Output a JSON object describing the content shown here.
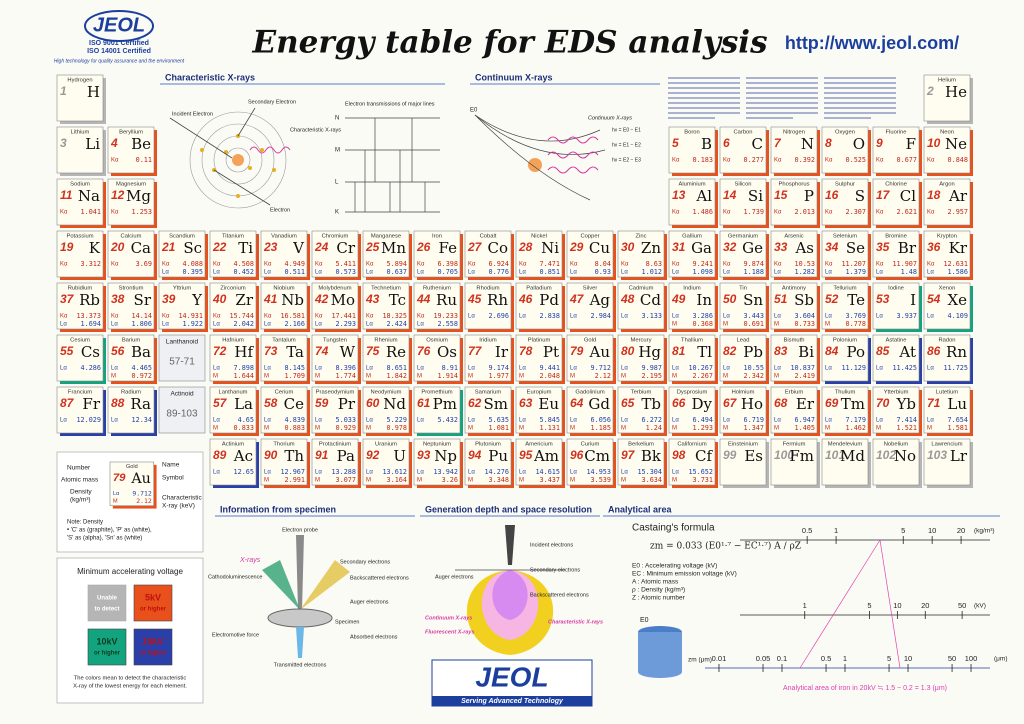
{
  "header": {
    "logo": "JEOL",
    "iso": [
      "ISO 9001 Certified",
      "ISO 14001 Certified"
    ],
    "tagline": "High technology for quality assurance and the environment",
    "title": "Energy table for EDS analysis",
    "url": "http://www.jeol.com/"
  },
  "line_labels": {
    "Ka": "Kα",
    "La": "Lα",
    "M": "M"
  },
  "elements": [
    {
      "z": 1,
      "symbol": "H",
      "name": "Hydrogen",
      "color": "#b5b5b5"
    },
    {
      "z": 2,
      "symbol": "He",
      "name": "Helium",
      "color": "#b5b5b5"
    },
    {
      "z": 3,
      "symbol": "Li",
      "name": "Lithium",
      "color": "#b5b5b5"
    },
    {
      "z": 4,
      "symbol": "Be",
      "name": "Beryllium",
      "color": "#e8501c",
      "Ka": 0.11
    },
    {
      "z": 5,
      "symbol": "B",
      "name": "Boron",
      "color": "#e8501c",
      "Ka": 0.183
    },
    {
      "z": 6,
      "symbol": "C",
      "name": "Carbon",
      "color": "#e8501c",
      "Ka": 0.277
    },
    {
      "z": 7,
      "symbol": "N",
      "name": "Nitrogen",
      "color": "#e8501c",
      "Ka": 0.392
    },
    {
      "z": 8,
      "symbol": "O",
      "name": "Oxygen",
      "color": "#e8501c",
      "Ka": 0.525
    },
    {
      "z": 9,
      "symbol": "F",
      "name": "Fluorine",
      "color": "#e8501c",
      "Ka": 0.677
    },
    {
      "z": 10,
      "symbol": "Ne",
      "name": "Neon",
      "color": "#e8501c",
      "Ka": 0.848
    },
    {
      "z": 11,
      "symbol": "Na",
      "name": "Sodium",
      "color": "#e8501c",
      "Ka": 1.041
    },
    {
      "z": 12,
      "symbol": "Mg",
      "name": "Magnesium",
      "color": "#e8501c",
      "Ka": 1.253
    },
    {
      "z": 13,
      "symbol": "Al",
      "name": "Aluminium",
      "color": "#e8501c",
      "Ka": 1.486
    },
    {
      "z": 14,
      "symbol": "Si",
      "name": "Silicon",
      "color": "#e8501c",
      "Ka": 1.739
    },
    {
      "z": 15,
      "symbol": "P",
      "name": "Phosphorus",
      "color": "#e8501c",
      "Ka": 2.013
    },
    {
      "z": 16,
      "symbol": "S",
      "name": "Sulphur",
      "color": "#e8501c",
      "Ka": 2.307
    },
    {
      "z": 17,
      "symbol": "Cl",
      "name": "Chlorine",
      "color": "#e8501c",
      "Ka": 2.621
    },
    {
      "z": 18,
      "symbol": "Ar",
      "name": "Argon",
      "color": "#e8501c",
      "Ka": 2.957
    },
    {
      "z": 19,
      "symbol": "K",
      "name": "Potassium",
      "color": "#e8501c",
      "Ka": 3.312
    },
    {
      "z": 20,
      "symbol": "Ca",
      "name": "Calcium",
      "color": "#e8501c",
      "Ka": 3.69
    },
    {
      "z": 21,
      "symbol": "Sc",
      "name": "Scandium",
      "color": "#e8501c",
      "Ka": 4.088,
      "La": 0.395
    },
    {
      "z": 22,
      "symbol": "Ti",
      "name": "Titanium",
      "color": "#e8501c",
      "Ka": 4.508,
      "La": 0.452
    },
    {
      "z": 23,
      "symbol": "V",
      "name": "Vanadium",
      "color": "#e8501c",
      "Ka": 4.949,
      "La": 0.511
    },
    {
      "z": 24,
      "symbol": "Cr",
      "name": "Chromium",
      "color": "#e8501c",
      "Ka": 5.411,
      "La": 0.573
    },
    {
      "z": 25,
      "symbol": "Mn",
      "name": "Manganese",
      "color": "#e8501c",
      "Ka": 5.894,
      "La": 0.637
    },
    {
      "z": 26,
      "symbol": "Fe",
      "name": "Iron",
      "color": "#e8501c",
      "Ka": 6.398,
      "La": 0.705
    },
    {
      "z": 27,
      "symbol": "Co",
      "name": "Cobalt",
      "color": "#e8501c",
      "Ka": 6.924,
      "La": 0.776
    },
    {
      "z": 28,
      "symbol": "Ni",
      "name": "Nickel",
      "color": "#e8501c",
      "Ka": 7.471,
      "La": 0.851
    },
    {
      "z": 29,
      "symbol": "Cu",
      "name": "Copper",
      "color": "#e8501c",
      "Ka": 8.04,
      "La": 0.93
    },
    {
      "z": 30,
      "symbol": "Zn",
      "name": "Zinc",
      "color": "#e8501c",
      "Ka": 8.63,
      "La": 1.012
    },
    {
      "z": 31,
      "symbol": "Ga",
      "name": "Gallium",
      "color": "#e8501c",
      "Ka": 9.241,
      "La": 1.098
    },
    {
      "z": 32,
      "symbol": "Ge",
      "name": "Germanium",
      "color": "#e8501c",
      "Ka": 9.874,
      "La": 1.188
    },
    {
      "z": 33,
      "symbol": "As",
      "name": "Arsenic",
      "color": "#e8501c",
      "Ka": 10.53,
      "La": 1.282
    },
    {
      "z": 34,
      "symbol": "Se",
      "name": "Selenium",
      "color": "#e8501c",
      "Ka": 11.207,
      "La": 1.379
    },
    {
      "z": 35,
      "symbol": "Br",
      "name": "Bromine",
      "color": "#e8501c",
      "Ka": 11.907,
      "La": 1.48
    },
    {
      "z": 36,
      "symbol": "Kr",
      "name": "Krypton",
      "color": "#e8501c",
      "Ka": 12.631,
      "La": 1.586
    },
    {
      "z": 37,
      "symbol": "Rb",
      "name": "Rubidium",
      "color": "#e8501c",
      "Ka": 13.373,
      "La": 1.694
    },
    {
      "z": 38,
      "symbol": "Sr",
      "name": "Strontium",
      "color": "#e8501c",
      "Ka": 14.14,
      "La": 1.806
    },
    {
      "z": 39,
      "symbol": "Y",
      "name": "Yttrium",
      "color": "#e8501c",
      "Ka": 14.931,
      "La": 1.922
    },
    {
      "z": 40,
      "symbol": "Zr",
      "name": "Zirconium",
      "color": "#e8501c",
      "Ka": 15.744,
      "La": 2.042
    },
    {
      "z": 41,
      "symbol": "Nb",
      "name": "Niobium",
      "color": "#e8501c",
      "Ka": 16.581,
      "La": 2.166
    },
    {
      "z": 42,
      "symbol": "Mo",
      "name": "Molybdenum",
      "color": "#e8501c",
      "Ka": 17.441,
      "La": 2.293
    },
    {
      "z": 43,
      "symbol": "Tc",
      "name": "Technetium",
      "color": "#e8501c",
      "Ka": 18.325,
      "La": 2.424
    },
    {
      "z": 44,
      "symbol": "Ru",
      "name": "Ruthenium",
      "color": "#e8501c",
      "Ka": 19.233,
      "La": 2.558
    },
    {
      "z": 45,
      "symbol": "Rh",
      "name": "Rhodium",
      "color": "#e8501c",
      "La": 2.696
    },
    {
      "z": 46,
      "symbol": "Pd",
      "name": "Palladium",
      "color": "#e8501c",
      "La": 2.838
    },
    {
      "z": 47,
      "symbol": "Ag",
      "name": "Silver",
      "color": "#e8501c",
      "La": 2.984
    },
    {
      "z": 48,
      "symbol": "Cd",
      "name": "Cadmium",
      "color": "#e8501c",
      "La": 3.133
    },
    {
      "z": 49,
      "symbol": "In",
      "name": "Indium",
      "color": "#e8501c",
      "La": 3.286,
      "M": 0.368
    },
    {
      "z": 50,
      "symbol": "Sn",
      "name": "Tin",
      "color": "#e8501c",
      "La": 3.443,
      "M": 0.691
    },
    {
      "z": 51,
      "symbol": "Sb",
      "name": "Antimony",
      "color": "#e8501c",
      "La": 3.604,
      "M": 0.733
    },
    {
      "z": 52,
      "symbol": "Te",
      "name": "Tellurium",
      "color": "#e8501c",
      "La": 3.769,
      "M": 0.778
    },
    {
      "z": 53,
      "symbol": "I",
      "name": "Iodine",
      "color": "#14a37f",
      "La": 3.937
    },
    {
      "z": 54,
      "symbol": "Xe",
      "name": "Xenon",
      "color": "#14a37f",
      "La": 4.109
    },
    {
      "z": 55,
      "symbol": "Cs",
      "name": "Cesium",
      "color": "#14a37f",
      "La": 4.286
    },
    {
      "z": 56,
      "symbol": "Ba",
      "name": "Barium",
      "color": "#e8501c",
      "La": 4.465,
      "M": 0.972
    },
    {
      "z": 57,
      "symbol": "La",
      "name": "Lanthanum",
      "color": "#e8501c",
      "La": 4.65,
      "M": 0.833
    },
    {
      "z": 58,
      "symbol": "Ce",
      "name": "Cerium",
      "color": "#e8501c",
      "La": 4.839,
      "M": 0.883
    },
    {
      "z": 59,
      "symbol": "Pr",
      "name": "Praseodymium",
      "color": "#e8501c",
      "La": 5.033,
      "M": 0.929
    },
    {
      "z": 60,
      "symbol": "Nd",
      "name": "Neodymium",
      "color": "#e8501c",
      "La": 5.229,
      "M": 0.978
    },
    {
      "z": 61,
      "symbol": "Pm",
      "name": "Promethium",
      "color": "#14a37f",
      "La": 5.432
    },
    {
      "z": 62,
      "symbol": "Sm",
      "name": "Samarium",
      "color": "#e8501c",
      "La": 5.635,
      "M": 1.081
    },
    {
      "z": 63,
      "symbol": "Eu",
      "name": "Europium",
      "color": "#e8501c",
      "La": 5.845,
      "M": 1.131
    },
    {
      "z": 64,
      "symbol": "Gd",
      "name": "Gadolinium",
      "color": "#e8501c",
      "La": 6.056,
      "M": 1.185
    },
    {
      "z": 65,
      "symbol": "Tb",
      "name": "Terbium",
      "color": "#e8501c",
      "La": 6.272,
      "M": 1.24
    },
    {
      "z": 66,
      "symbol": "Dy",
      "name": "Dysprosium",
      "color": "#e8501c",
      "La": 6.494,
      "M": 1.293
    },
    {
      "z": 67,
      "symbol": "Ho",
      "name": "Holmium",
      "color": "#e8501c",
      "La": 6.719,
      "M": 1.347
    },
    {
      "z": 68,
      "symbol": "Er",
      "name": "Erbium",
      "color": "#e8501c",
      "La": 6.947,
      "M": 1.405
    },
    {
      "z": 69,
      "symbol": "Tm",
      "name": "Thulium",
      "color": "#e8501c",
      "La": 7.179,
      "M": 1.462
    },
    {
      "z": 70,
      "symbol": "Yb",
      "name": "Ytterbium",
      "color": "#e8501c",
      "La": 7.414,
      "M": 1.521
    },
    {
      "z": 71,
      "symbol": "Lu",
      "name": "Lutetium",
      "color": "#e8501c",
      "La": 7.654,
      "M": 1.581
    },
    {
      "z": 72,
      "symbol": "Hf",
      "name": "Hafnium",
      "color": "#e8501c",
      "La": 7.898,
      "M": 1.644
    },
    {
      "z": 73,
      "symbol": "Ta",
      "name": "Tantalum",
      "color": "#e8501c",
      "La": 8.145,
      "M": 1.709
    },
    {
      "z": 74,
      "symbol": "W",
      "name": "Tungsten",
      "color": "#e8501c",
      "La": 8.396,
      "M": 1.774
    },
    {
      "z": 75,
      "symbol": "Re",
      "name": "Rhenium",
      "color": "#e8501c",
      "La": 8.651,
      "M": 1.842
    },
    {
      "z": 76,
      "symbol": "Os",
      "name": "Osmium",
      "color": "#e8501c",
      "La": 8.91,
      "M": 1.914
    },
    {
      "z": 77,
      "symbol": "Ir",
      "name": "Iridium",
      "color": "#e8501c",
      "La": 9.174,
      "M": 1.977
    },
    {
      "z": 78,
      "symbol": "Pt",
      "name": "Platinum",
      "color": "#e8501c",
      "La": 9.441,
      "M": 2.048
    },
    {
      "z": 79,
      "symbol": "Au",
      "name": "Gold",
      "color": "#e8501c",
      "La": 9.712,
      "M": 2.12
    },
    {
      "z": 80,
      "symbol": "Hg",
      "name": "Mercury",
      "color": "#e8501c",
      "La": 9.987,
      "M": 2.195
    },
    {
      "z": 81,
      "symbol": "Tl",
      "name": "Thallium",
      "color": "#e8501c",
      "La": 10.267,
      "M": 2.267
    },
    {
      "z": 82,
      "symbol": "Pb",
      "name": "Lead",
      "color": "#e8501c",
      "La": 10.55,
      "M": 2.342
    },
    {
      "z": 83,
      "symbol": "Bi",
      "name": "Bismuth",
      "color": "#e8501c",
      "La": 10.837,
      "M": 2.419
    },
    {
      "z": 84,
      "symbol": "Po",
      "name": "Polonium",
      "color": "#2b3fa8",
      "La": 11.129
    },
    {
      "z": 85,
      "symbol": "At",
      "name": "Astatine",
      "color": "#2b3fa8",
      "La": 11.425
    },
    {
      "z": 86,
      "symbol": "Rn",
      "name": "Radon",
      "color": "#2b3fa8",
      "La": 11.725
    },
    {
      "z": 87,
      "symbol": "Fr",
      "name": "Francium",
      "color": "#2b3fa8",
      "La": 12.029
    },
    {
      "z": 88,
      "symbol": "Ra",
      "name": "Radium",
      "color": "#2b3fa8",
      "La": 12.34
    },
    {
      "z": 89,
      "symbol": "Ac",
      "name": "Actinium",
      "color": "#2b3fa8",
      "La": 12.65
    },
    {
      "z": 90,
      "symbol": "Th",
      "name": "Thorium",
      "color": "#e8501c",
      "La": 12.967,
      "M": 2.991
    },
    {
      "z": 91,
      "symbol": "Pa",
      "name": "Protactinium",
      "color": "#e8501c",
      "La": 13.288,
      "M": 3.077
    },
    {
      "z": 92,
      "symbol": "U",
      "name": "Uranium",
      "color": "#e8501c",
      "La": 13.612,
      "M": 3.164
    },
    {
      "z": 93,
      "symbol": "Np",
      "name": "Neptunium",
      "color": "#e8501c",
      "La": 13.942,
      "M": 3.26
    },
    {
      "z": 94,
      "symbol": "Pu",
      "name": "Plutonium",
      "color": "#e8501c",
      "La": 14.276,
      "M": 3.348
    },
    {
      "z": 95,
      "symbol": "Am",
      "name": "Americium",
      "color": "#e8501c",
      "La": 14.615,
      "M": 3.437
    },
    {
      "z": 96,
      "symbol": "Cm",
      "name": "Curium",
      "color": "#e8501c",
      "La": 14.953,
      "M": 3.539
    },
    {
      "z": 97,
      "symbol": "Bk",
      "name": "Berkelium",
      "color": "#e8501c",
      "La": 15.304,
      "M": 3.634
    },
    {
      "z": 98,
      "symbol": "Cf",
      "name": "Californium",
      "color": "#e8501c",
      "La": 15.652,
      "M": 3.731
    },
    {
      "z": 99,
      "symbol": "Es",
      "name": "Einsteinium",
      "color": "#b5b5b5"
    },
    {
      "z": 100,
      "symbol": "Fm",
      "name": "Fermium",
      "color": "#b5b5b5"
    },
    {
      "z": 101,
      "symbol": "Md",
      "name": "Mendelevium",
      "color": "#b5b5b5"
    },
    {
      "z": 102,
      "symbol": "No",
      "name": "Nobelium",
      "color": "#b5b5b5"
    },
    {
      "z": 103,
      "symbol": "Lr",
      "name": "Lawrencium",
      "color": "#b5b5b5"
    }
  ],
  "series_cells": [
    {
      "name": "Lanthanoid",
      "range": "57-71"
    },
    {
      "name": "Actinoid",
      "range": "89-103"
    }
  ],
  "key": {
    "number": "Number",
    "mass": "Atomic mass",
    "density": "Density",
    "density_unit": "(kg/m³)",
    "name": "Name",
    "symbol": "Symbol",
    "xray": "Characteristic",
    "xray_unit": "X-ray (keV)",
    "note": [
      "Note: Density",
      "• 'C' as (graphite), 'P' as (white),",
      "'S' as (alpha), 'Sn' as (white)"
    ]
  },
  "legend": {
    "title": "Minimum accelerating voltage",
    "items": [
      {
        "label": "Unable",
        "sub": "to detect",
        "color": "#b5b5b5"
      },
      {
        "label": "5kV",
        "sub": "or higher",
        "color": "#e8501c"
      },
      {
        "label": "10kV",
        "sub": "or higher",
        "color": "#14a37f"
      },
      {
        "label": "15kV",
        "sub": "or higher",
        "color": "#2b3fa8"
      }
    ],
    "footnote": [
      "The colors mean to detect the characteristic",
      "X-ray of the lowest energy for each element."
    ]
  },
  "characteristic": {
    "title": "Characteristic X-rays",
    "labels": {
      "secondary": "Secondary Electron",
      "incident": "Incident Electron",
      "xray": "Characteristic X-rays",
      "electron": "Electron",
      "transitions": "Electron transmissions of major lines"
    },
    "shells": [
      "K",
      "L",
      "M",
      "N"
    ]
  },
  "continuum": {
    "title": "Continuum X-rays",
    "labels": {
      "xray": "Continuum X-rays",
      "e0": "E0",
      "e1": "hν = E0 − E1",
      "e2": "hν = E1 − E2",
      "e3": "hν = E2 − E3"
    }
  },
  "specimen": {
    "title": "Information from specimen",
    "labels": {
      "probe": "Electron probe",
      "xrays": "X-rays",
      "cl": "Cathodoluminescence",
      "se": "Secondary electrons",
      "bse": "Backscattered electrons",
      "auger": "Auger electrons",
      "spec": "Specimen",
      "emf": "Electromotive force",
      "abs": "Absorbed electrons",
      "trans": "Transmitted electrons"
    }
  },
  "depth": {
    "title": "Generation depth and space resolution",
    "labels": {
      "inc": "Incident electrons",
      "auger": "Auger electrons",
      "se": "Secondary electrons",
      "bse": "Backscattered electrons",
      "cont": "Continuum X-rays",
      "char": "Characteristic X-rays",
      "fluo": "Fluorescent X-rays"
    }
  },
  "analytical": {
    "title": "Analytical area",
    "formula_title": "Castaing's formula",
    "formula": "zm = 0.033 (E0¹·⁷ − EC¹·⁷) A / ρZ",
    "defs": [
      "E0 : Accelerating voltage (kV)",
      "EC : Minimum emission voltage (kV)",
      "A : Atomic mass",
      "ρ : Density (kg/m³)",
      "Z : Atomic number"
    ],
    "axes": [
      {
        "ticks": [
          0.5,
          1,
          5,
          10,
          20
        ],
        "xlim": [
          0.1,
          40
        ],
        "unit": "(kg/m³)"
      },
      {
        "ticks": [
          1,
          5,
          10,
          20,
          50
        ],
        "xlim": [
          0.2,
          100
        ],
        "unit": "(kV)"
      },
      {
        "ticks": [
          0.01,
          0.05,
          0.1,
          0.5,
          1,
          5,
          10,
          50,
          100
        ],
        "xlim": [
          0.006,
          200
        ],
        "unit": "(μm)"
      }
    ],
    "axis_name": "zm (μm)",
    "e0": "E0",
    "caption": "Analytical area of iron in 20kV ≒ 1.5 − 0.2 = 1.3 (μm)"
  },
  "footer": {
    "logo": "JEOL",
    "slogan": "Serving Advanced Technology"
  }
}
